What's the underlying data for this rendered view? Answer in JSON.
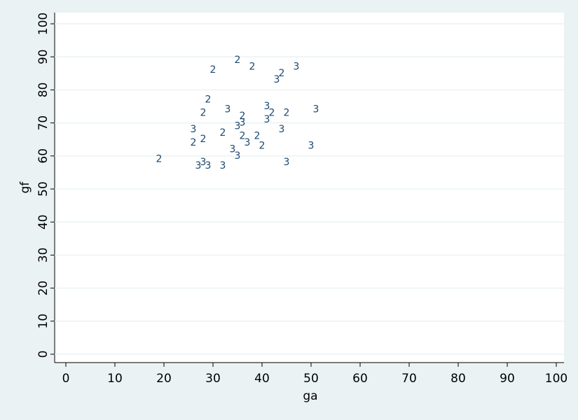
{
  "chart_data": {
    "type": "scatter",
    "x_label": "ga",
    "y_label": "gf",
    "color": "#1a476f",
    "grid": true,
    "xlim": [
      0,
      100
    ],
    "ylim": [
      0,
      100
    ],
    "xticks": [
      0,
      10,
      20,
      30,
      40,
      50,
      60,
      70,
      80,
      90,
      100
    ],
    "yticks": [
      0,
      10,
      20,
      30,
      40,
      50,
      60,
      70,
      80,
      90,
      100
    ],
    "x": [
      19,
      30,
      35,
      38,
      47,
      44,
      43,
      29,
      28,
      33,
      41,
      42,
      45,
      51,
      36,
      36,
      41,
      35,
      26,
      44,
      32,
      36,
      39,
      28,
      26,
      37,
      40,
      50,
      34,
      35,
      28,
      27,
      29,
      32,
      45
    ],
    "y": [
      59,
      86,
      89,
      87,
      87,
      85,
      83,
      77,
      73,
      74,
      75,
      73,
      73,
      74,
      72,
      70,
      71,
      69,
      68,
      68,
      67,
      66,
      66,
      65,
      64,
      64,
      63,
      63,
      62,
      60,
      58,
      57,
      57,
      57,
      58
    ],
    "marker_labels": [
      "2",
      "2",
      "2",
      "2",
      "3",
      "2",
      "3",
      "2",
      "2",
      "3",
      "3",
      "2",
      "2",
      "3",
      "2",
      "3",
      "3",
      "3",
      "3",
      "3",
      "2",
      "2",
      "2",
      "2",
      "2",
      "3",
      "2",
      "3",
      "3",
      "3",
      "3",
      "3",
      "3",
      "3",
      "3"
    ]
  }
}
